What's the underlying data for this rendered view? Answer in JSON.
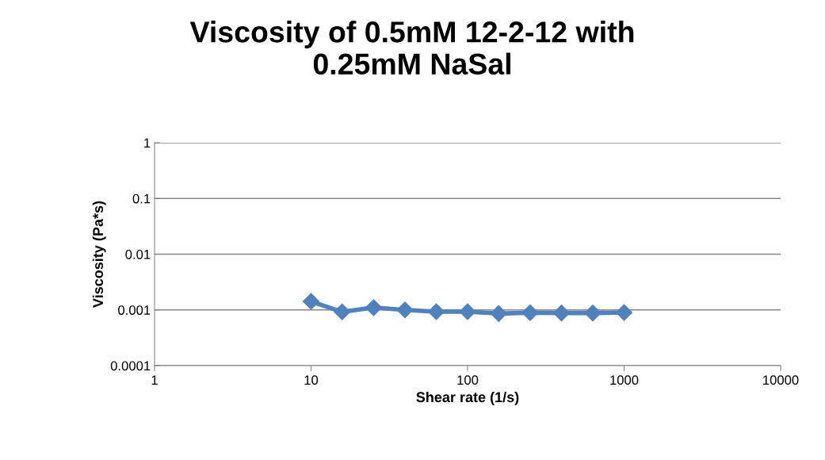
{
  "chart_data": {
    "type": "line",
    "title": "Viscosity of 0.5mM 12-2-12 with\n0.25mM NaSal",
    "xlabel": "Shear rate (1/s)",
    "ylabel": "Viscosity (Pa*s)",
    "log": "xy",
    "x": [
      10,
      15.8,
      25.1,
      39.8,
      63.1,
      100,
      158,
      251,
      398,
      631,
      1000
    ],
    "series": [
      {
        "color": "#4f81bd",
        "values": [
          0.00142,
          0.00092,
          0.0011,
          0.001,
          0.00093,
          0.00093,
          0.00086,
          0.00089,
          0.00088,
          0.00088,
          0.0009
        ]
      }
    ],
    "xlim": [
      1,
      10000
    ],
    "xticks": [
      1,
      10,
      100,
      1000,
      10000
    ],
    "ylim": [
      0.0001,
      1
    ],
    "yticks": [
      0.0001,
      0.001,
      0.01,
      0.1,
      1
    ],
    "grid": "y",
    "marker": "diamond",
    "line_style": "solid",
    "legend": false
  }
}
